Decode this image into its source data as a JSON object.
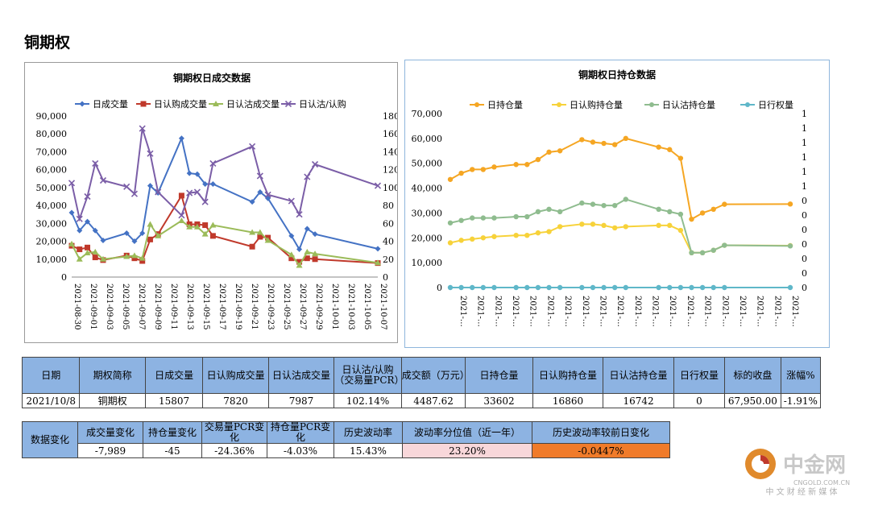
{
  "page": {
    "title": "铜期权"
  },
  "chart1": {
    "title": "铜期权日成交数据",
    "legend": [
      "日成交量",
      "日认购成交量",
      "日认沽成交量",
      "日认沽/认购"
    ],
    "yleft_ticks": [
      "90,000",
      "80,000",
      "70,000",
      "60,000",
      "50,000",
      "40,000",
      "30,000",
      "20,000",
      "10,000",
      "0"
    ],
    "yright_ticks": [
      "180",
      "160",
      "140",
      "120",
      "100",
      "80",
      "60",
      "40",
      "20",
      "0"
    ],
    "x_ticks": [
      "2021-08-30",
      "2021-09-01",
      "2021-09-03",
      "2021-09-05",
      "2021-09-07",
      "2021-09-09",
      "2021-09-11",
      "2021-09-13",
      "2021-09-15",
      "2021-09-17",
      "2021-09-19",
      "2021-09-21",
      "2021-09-23",
      "2021-09-25",
      "2021-09-27",
      "2021-09-29",
      "2021-10-01",
      "2021-10-03",
      "2021-10-05",
      "2021-10-07"
    ]
  },
  "chart2": {
    "title": "铜期权日持仓数据",
    "legend": [
      "日持仓量",
      "日认购持仓量",
      "日认沽持仓量",
      "日行权量"
    ],
    "yleft_ticks": [
      "70,000",
      "60,000",
      "50,000",
      "40,000",
      "30,000",
      "20,000",
      "10,000",
      "0"
    ],
    "yright_ticks": [
      "1",
      "1",
      "1",
      "1",
      "1",
      "1",
      "0",
      "0",
      "0",
      "0",
      "0",
      "0",
      "0"
    ],
    "x_tick_label": "2021-…",
    "x_tick_count": 20
  },
  "chart_data": [
    {
      "type": "line",
      "title": "铜期权日成交数据",
      "x_domain": [
        "2021-08-30",
        "2021-10-08"
      ],
      "ylim": [
        0,
        90000
      ],
      "y2lim": [
        0,
        180
      ],
      "series": [
        {
          "name": "日成交量",
          "axis": "left",
          "color": "#4472c4",
          "x": [
            "2021-08-30",
            "2021-08-31",
            "2021-09-01",
            "2021-09-02",
            "2021-09-03",
            "2021-09-06",
            "2021-09-07",
            "2021-09-08",
            "2021-09-09",
            "2021-09-10",
            "2021-09-13",
            "2021-09-14",
            "2021-09-15",
            "2021-09-16",
            "2021-09-17",
            "2021-09-22",
            "2021-09-23",
            "2021-09-24",
            "2021-09-27",
            "2021-09-28",
            "2021-09-29",
            "2021-09-30",
            "2021-10-08"
          ],
          "values": [
            36000,
            26000,
            31000,
            26000,
            20500,
            24500,
            20000,
            24500,
            51000,
            47000,
            77500,
            58000,
            57500,
            52000,
            52000,
            42000,
            47500,
            44000,
            23000,
            15500,
            27000,
            24000,
            15807
          ]
        },
        {
          "name": "日认购成交量",
          "axis": "left",
          "color": "#c0392b",
          "x": [
            "2021-08-30",
            "2021-08-31",
            "2021-09-01",
            "2021-09-02",
            "2021-09-03",
            "2021-09-06",
            "2021-09-07",
            "2021-09-08",
            "2021-09-09",
            "2021-09-10",
            "2021-09-13",
            "2021-09-14",
            "2021-09-15",
            "2021-09-16",
            "2021-09-17",
            "2021-09-22",
            "2021-09-23",
            "2021-09-24",
            "2021-09-27",
            "2021-09-28",
            "2021-09-29",
            "2021-09-30",
            "2021-10-08"
          ],
          "values": [
            17500,
            15500,
            16500,
            11000,
            9500,
            12000,
            10500,
            9000,
            21000,
            24000,
            45500,
            29500,
            29500,
            29000,
            23000,
            17000,
            22500,
            22000,
            10500,
            8500,
            10500,
            10000,
            7820
          ]
        },
        {
          "name": "日认沽成交量",
          "axis": "left",
          "color": "#9bbb59",
          "x": [
            "2021-08-30",
            "2021-08-31",
            "2021-09-01",
            "2021-09-02",
            "2021-09-03",
            "2021-09-06",
            "2021-09-07",
            "2021-09-08",
            "2021-09-09",
            "2021-09-10",
            "2021-09-13",
            "2021-09-14",
            "2021-09-15",
            "2021-09-16",
            "2021-09-17",
            "2021-09-22",
            "2021-09-23",
            "2021-09-24",
            "2021-09-27",
            "2021-09-28",
            "2021-09-29",
            "2021-09-30",
            "2021-10-08"
          ],
          "values": [
            18500,
            10000,
            13500,
            14000,
            10000,
            11500,
            12000,
            10500,
            29500,
            23000,
            31500,
            28000,
            28000,
            24000,
            29000,
            25000,
            25000,
            20500,
            12500,
            6500,
            14000,
            13000,
            7987
          ]
        },
        {
          "name": "日认沽/认购",
          "axis": "right",
          "color": "#7b5ea7",
          "x": [
            "2021-08-30",
            "2021-08-31",
            "2021-09-01",
            "2021-09-02",
            "2021-09-03",
            "2021-09-06",
            "2021-09-07",
            "2021-09-08",
            "2021-09-09",
            "2021-09-10",
            "2021-09-13",
            "2021-09-14",
            "2021-09-15",
            "2021-09-16",
            "2021-09-17",
            "2021-09-22",
            "2021-09-23",
            "2021-09-24",
            "2021-09-27",
            "2021-09-28",
            "2021-09-29",
            "2021-09-30",
            "2021-10-08"
          ],
          "values": [
            105,
            65,
            90,
            127,
            108,
            101,
            93,
            166,
            138,
            95,
            69,
            94,
            95,
            84,
            127,
            146,
            113,
            92,
            85,
            70,
            112,
            126,
            102.14
          ]
        }
      ]
    },
    {
      "type": "line",
      "title": "铜期权日持仓数据",
      "ylim": [
        0,
        70000
      ],
      "x_index": [
        0,
        1,
        2,
        3,
        4,
        6,
        7,
        8,
        9,
        10,
        12,
        13,
        14,
        15,
        16,
        19,
        20,
        21,
        22,
        24,
        25,
        26,
        27,
        28,
        29,
        31
      ],
      "series": [
        {
          "name": "日持仓量",
          "color": "#f5a623",
          "points": [
            [
              0,
              43500
            ],
            [
              1,
              46000
            ],
            [
              2,
              47500
            ],
            [
              3,
              47500
            ],
            [
              4,
              48500
            ],
            [
              6,
              49500
            ],
            [
              7,
              49500
            ],
            [
              8,
              51500
            ],
            [
              9,
              54500
            ],
            [
              10,
              55000
            ],
            [
              12,
              59500
            ],
            [
              13,
              58500
            ],
            [
              14,
              58000
            ],
            [
              15,
              57500
            ],
            [
              16,
              60000
            ],
            [
              19,
              56500
            ],
            [
              20,
              55500
            ],
            [
              21,
              52000
            ],
            [
              22,
              27500
            ],
            [
              23,
              30000
            ],
            [
              24,
              31500
            ],
            [
              25,
              33500
            ],
            [
              31,
              33602
            ]
          ]
        },
        {
          "name": "日认购持仓量",
          "color": "#f7d23a",
          "points": [
            [
              0,
              18000
            ],
            [
              1,
              19000
            ],
            [
              2,
              19500
            ],
            [
              3,
              20000
            ],
            [
              4,
              20500
            ],
            [
              6,
              21000
            ],
            [
              7,
              21000
            ],
            [
              8,
              22000
            ],
            [
              9,
              22500
            ],
            [
              10,
              24500
            ],
            [
              12,
              25500
            ],
            [
              13,
              25500
            ],
            [
              14,
              25000
            ],
            [
              15,
              24000
            ],
            [
              16,
              24500
            ],
            [
              19,
              25000
            ],
            [
              20,
              25000
            ],
            [
              21,
              23000
            ],
            [
              22,
              14000
            ],
            [
              23,
              14000
            ],
            [
              24,
              15000
            ],
            [
              25,
              17000
            ],
            [
              31,
              16860
            ]
          ]
        },
        {
          "name": "日认沽持仓量",
          "color": "#8fbc8f",
          "points": [
            [
              0,
              26000
            ],
            [
              1,
              27000
            ],
            [
              2,
              28000
            ],
            [
              3,
              28000
            ],
            [
              4,
              28000
            ],
            [
              6,
              28500
            ],
            [
              7,
              28500
            ],
            [
              8,
              30500
            ],
            [
              9,
              31500
            ],
            [
              10,
              30500
            ],
            [
              12,
              34000
            ],
            [
              13,
              33500
            ],
            [
              14,
              33000
            ],
            [
              15,
              33000
            ],
            [
              16,
              35500
            ],
            [
              19,
              31500
            ],
            [
              20,
              30500
            ],
            [
              21,
              29500
            ],
            [
              22,
              14000
            ],
            [
              23,
              14000
            ],
            [
              24,
              15000
            ],
            [
              25,
              17000
            ],
            [
              31,
              16742
            ]
          ]
        },
        {
          "name": "日行权量",
          "color": "#5fb7c9",
          "points": [
            [
              0,
              0
            ],
            [
              1,
              0
            ],
            [
              2,
              0
            ],
            [
              3,
              0
            ],
            [
              4,
              0
            ],
            [
              6,
              0
            ],
            [
              7,
              0
            ],
            [
              8,
              0
            ],
            [
              9,
              0
            ],
            [
              10,
              0
            ],
            [
              12,
              0
            ],
            [
              13,
              0
            ],
            [
              14,
              0
            ],
            [
              15,
              0
            ],
            [
              16,
              0
            ],
            [
              19,
              0
            ],
            [
              20,
              0
            ],
            [
              21,
              0
            ],
            [
              22,
              0
            ],
            [
              23,
              0
            ],
            [
              24,
              0
            ],
            [
              25,
              0
            ],
            [
              31,
              0
            ]
          ]
        }
      ]
    }
  ],
  "table1": {
    "headers": [
      "日期",
      "期权简称",
      "日成交量",
      "日认购成交量",
      "日认沽成交量",
      "日认沽/认购（交易量PCR）",
      "成交额（万元）",
      "日持仓量",
      "日认购持仓量",
      "日认沽持仓量",
      "日行权量",
      "标的收盘",
      "涨幅%"
    ],
    "row": [
      "2021/10/8",
      "铜期权",
      "15807",
      "7820",
      "7987",
      "102.14%",
      "4487.62",
      "33602",
      "16860",
      "16742",
      "0",
      "67,950.00",
      "-1.91%"
    ]
  },
  "table2": {
    "side_label": "数据变化",
    "headers": [
      "成交量变化",
      "持仓量变化",
      "交易量PCR变化",
      "持仓量PCR变化",
      "历史波动率",
      "波动率分位值（近一年）",
      "历史波动率较前日变化"
    ],
    "row": [
      "-7,989",
      "-45",
      "-24.36%",
      "-4.03%",
      "15.43%",
      "23.20%",
      "-0.0447%"
    ],
    "highlight_colors": {
      "percentile": "#f8d7da",
      "change": "#f07b2a"
    }
  },
  "logo": {
    "name": "中金网",
    "domain": "CNGOLD.COM.CN",
    "slogan": "中 文 财 经 新 媒 体"
  }
}
